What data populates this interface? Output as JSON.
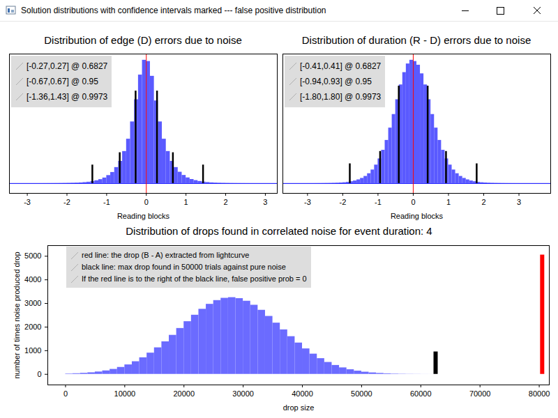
{
  "window": {
    "title": "Solution distributions with confidence intervals marked --- false positive distribution"
  },
  "chart_data": [
    {
      "type": "histogram",
      "title": "Distribution of edge (D) errors due to noise",
      "x_label": "Reading blocks",
      "bins": [
        -3.4,
        -3.3,
        -3.2,
        -3.1,
        -3.0,
        -2.9,
        -2.8,
        -2.7,
        -2.6,
        -2.5,
        -2.4,
        -2.3,
        -2.2,
        -2.1,
        -2.0,
        -1.9,
        -1.8,
        -1.7,
        -1.6,
        -1.5,
        -1.4,
        -1.3,
        -1.2,
        -1.1,
        -1.0,
        -0.9,
        -0.8,
        -0.7,
        -0.6,
        -0.5,
        -0.4,
        -0.3,
        -0.2,
        -0.1,
        0,
        0.1,
        0.2,
        0.3,
        0.4,
        0.5,
        0.6,
        0.7,
        0.8,
        0.9,
        1.0,
        1.1,
        1.2,
        1.3,
        1.4,
        1.5,
        1.6,
        1.7,
        1.8,
        1.9,
        2.0,
        2.1,
        2.2,
        2.3,
        2.4,
        2.5,
        2.6,
        2.7,
        2.8,
        2.9,
        3.0,
        3.1,
        3.2,
        3.3,
        3.4
      ],
      "counts": [
        0,
        0,
        0,
        0,
        0,
        0,
        0,
        0.01,
        0.02,
        0.03,
        0.05,
        0.07,
        0.1,
        0.15,
        0.22,
        0.3,
        0.4,
        0.55,
        0.8,
        1.1,
        1.6,
        2.3,
        3.2,
        4.5,
        6.5,
        9,
        13,
        18,
        26,
        36,
        50,
        68,
        88,
        100,
        99,
        87,
        67,
        50,
        36,
        26,
        18,
        13,
        9.2,
        6.6,
        4.6,
        3.3,
        2.4,
        1.7,
        1.2,
        0.85,
        0.6,
        0.42,
        0.3,
        0.22,
        0.15,
        0.1,
        0.07,
        0.05,
        0.03,
        0.02,
        0.01,
        0,
        0,
        0,
        0,
        0,
        0,
        0
      ],
      "color": "#5a5aff",
      "xlim": [
        -3.45,
        3.3
      ],
      "xticks": [
        -3,
        -2,
        -1,
        0,
        1,
        2,
        3
      ],
      "ylim": [
        -8,
        105
      ],
      "tick_labels": "x",
      "reference_line": {
        "x": 0,
        "color": "red"
      },
      "intervals": [
        {
          "lo": -0.27,
          "hi": 0.27,
          "label": "[-0.27,0.27] @ 0.6827",
          "height": 75
        },
        {
          "lo": -0.67,
          "hi": 0.67,
          "label": "[-0.67,0.67] @ 0.95",
          "height": 25
        },
        {
          "lo": -1.36,
          "hi": 1.43,
          "label": "[-1.36,1.43] @ 0.9973",
          "height": 15
        }
      ]
    },
    {
      "type": "histogram",
      "title": "Distribution of duration (R - D) errors due to noise",
      "x_label": "Reading blocks",
      "bins": [
        -3.0,
        -2.9,
        -2.8,
        -2.7,
        -2.6,
        -2.5,
        -2.4,
        -2.3,
        -2.2,
        -2.1,
        -2.0,
        -1.9,
        -1.8,
        -1.7,
        -1.6,
        -1.5,
        -1.4,
        -1.3,
        -1.2,
        -1.1,
        -1.0,
        -0.9,
        -0.8,
        -0.7,
        -0.6,
        -0.5,
        -0.4,
        -0.3,
        -0.2,
        -0.1,
        0,
        0.1,
        0.2,
        0.3,
        0.4,
        0.5,
        0.6,
        0.7,
        0.8,
        0.9,
        1.0,
        1.1,
        1.2,
        1.3,
        1.4,
        1.5,
        1.6,
        1.7,
        1.8,
        1.9,
        2.0,
        2.1,
        2.2,
        2.3,
        2.4,
        2.5,
        2.6,
        2.7,
        2.8,
        2.9,
        3.0
      ],
      "counts": [
        0.01,
        0.02,
        0.03,
        0.05,
        0.08,
        0.12,
        0.17,
        0.25,
        0.35,
        0.5,
        0.7,
        1,
        1.5,
        2.1,
        3,
        4.2,
        5.8,
        8,
        11,
        15,
        20,
        27,
        35,
        45,
        56,
        68,
        80,
        90,
        97,
        100,
        99,
        96,
        89,
        80,
        68,
        56,
        45,
        35,
        27,
        20,
        15,
        11,
        8,
        5.8,
        4.2,
        3,
        2.1,
        1.5,
        1,
        0.7,
        0.5,
        0.35,
        0.25,
        0.17,
        0.12,
        0.08,
        0.05,
        0.03,
        0.02,
        0.01
      ],
      "color": "#5a5aff",
      "xlim": [
        -3.7,
        3.9
      ],
      "xticks": [
        -3,
        -2,
        -1,
        0,
        1,
        2,
        3
      ],
      "ylim": [
        -8,
        105
      ],
      "tick_labels": "x",
      "reference_line": {
        "x": 0,
        "color": "red"
      },
      "intervals": [
        {
          "lo": -0.41,
          "hi": 0.41,
          "label": "[-0.41,0.41] @ 0.6827",
          "height": 79
        },
        {
          "lo": -0.94,
          "hi": 0.93,
          "label": "[-0.94,0.93] @ 0.95",
          "height": 26
        },
        {
          "lo": -1.8,
          "hi": 1.8,
          "label": "[-1.80,1.80] @ 0.9973",
          "height": 16
        }
      ]
    },
    {
      "type": "histogram",
      "title": "Distribution of drops found in correlated noise for event duration: 4",
      "x_label": "drop size",
      "y_label": "number of times noise produced drop",
      "bins": [
        0,
        1250,
        2500,
        3750,
        5000,
        6250,
        7500,
        8750,
        10000,
        11250,
        12500,
        13750,
        15000,
        16250,
        17500,
        18750,
        20000,
        21250,
        22500,
        23750,
        25000,
        26250,
        27500,
        28750,
        30000,
        31250,
        32500,
        33750,
        35000,
        36250,
        37500,
        38750,
        40000,
        41250,
        42500,
        43750,
        45000,
        46250,
        47500,
        48750,
        50000,
        51250,
        52500,
        53750,
        55000,
        56250,
        57500,
        58750,
        60000,
        61250,
        62500
      ],
      "counts": [
        18,
        29,
        45,
        68,
        102,
        148,
        212,
        295,
        402,
        537,
        703,
        901,
        1125,
        1379,
        1654,
        1944,
        2232,
        2506,
        2757,
        2967,
        3126,
        3222,
        3250,
        3208,
        3098,
        2928,
        2714,
        2455,
        2171,
        1885,
        1598,
        1328,
        1080,
        859,
        667,
        506,
        379,
        276,
        197,
        138,
        94,
        63,
        41,
        26,
        16,
        10,
        6,
        4,
        2,
        1
      ],
      "color": "#6b6bff",
      "xlim": [
        -3000,
        81700
      ],
      "xticks": [
        0,
        10000,
        20000,
        30000,
        40000,
        50000,
        60000,
        70000,
        80000
      ],
      "ylim": [
        -450,
        5450
      ],
      "yticks": [
        0,
        1000,
        2000,
        3000,
        4000,
        5000
      ],
      "markers": [
        {
          "x": 80500,
          "height": 5050,
          "color": "red"
        },
        {
          "x": 62500,
          "height": 950,
          "color": "black"
        }
      ],
      "notes": [
        "red line: the drop (B - A) extracted from lightcurve",
        "black line: max drop found in 50000 trials against pure noise",
        "If the red line is to the right of the black line, false positive prob = 0"
      ]
    }
  ]
}
